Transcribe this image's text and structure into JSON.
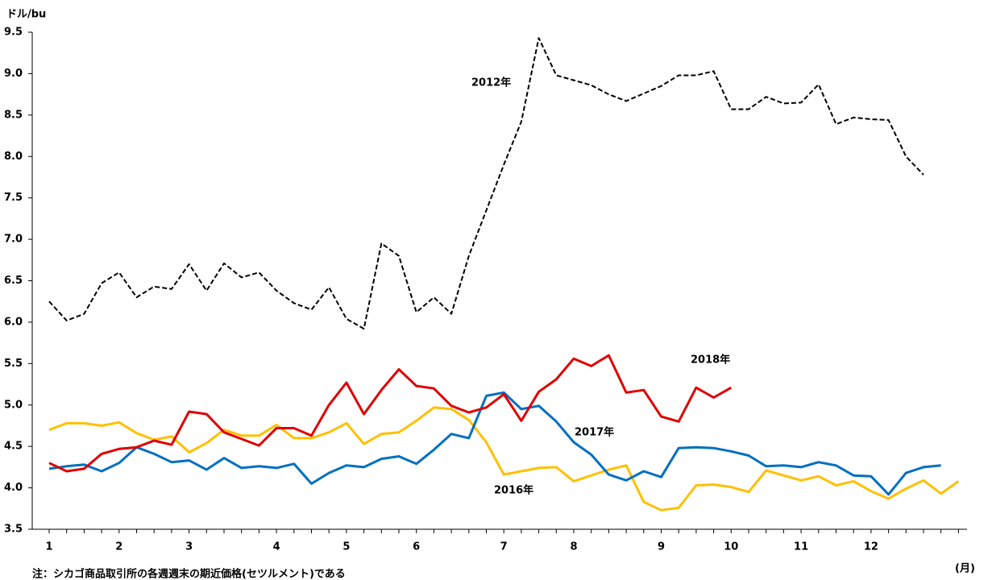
{
  "chart_data": {
    "type": "line",
    "y_label": "ドル/bu",
    "x_label": "(月)",
    "note": "注：シカゴ商品取引所の各週週末の期近価格(セツルメント)である",
    "categories": [
      "1",
      null,
      null,
      null,
      "2",
      null,
      null,
      null,
      "3",
      null,
      null,
      null,
      null,
      "4",
      null,
      null,
      null,
      "5",
      null,
      null,
      null,
      "6",
      null,
      null,
      null,
      null,
      "7",
      null,
      null,
      null,
      "8",
      null,
      null,
      null,
      null,
      "9",
      null,
      null,
      null,
      "10",
      null,
      null,
      null,
      "11",
      null,
      null,
      null,
      "12",
      null,
      null,
      null,
      null,
      null
    ],
    "ylim": [
      3.5,
      9.5
    ],
    "yticks": [
      3.5,
      {
        "value": 4,
        "label": "4.0"
      },
      4.5,
      {
        "value": 5,
        "label": "5.0"
      },
      5.5,
      {
        "value": 6,
        "label": "6.0"
      },
      6.5,
      {
        "value": 7,
        "label": "7.0"
      },
      7.5,
      {
        "value": 8,
        "label": "8.0"
      },
      8.5,
      {
        "value": 9,
        "label": "9.0"
      },
      9.5
    ],
    "grid": false,
    "series": [
      {
        "name": "2012年",
        "color": "#000000",
        "dashed": true,
        "values": [
          6.25,
          6.02,
          6.1,
          6.47,
          6.6,
          6.3,
          6.43,
          6.4,
          6.7,
          6.38,
          6.71,
          6.54,
          6.6,
          6.38,
          6.23,
          6.15,
          6.42,
          6.04,
          5.92,
          6.95,
          6.8,
          6.12,
          6.3,
          6.1,
          6.8,
          7.35,
          7.9,
          8.42,
          9.43,
          8.98,
          8.92,
          8.86,
          8.75,
          8.67,
          8.76,
          8.85,
          8.98,
          8.98,
          9.03,
          8.57,
          8.57,
          8.72,
          8.64,
          8.65,
          8.87,
          8.39,
          8.47,
          8.45,
          8.44,
          8.0,
          7.78,
          null,
          null
        ]
      },
      {
        "name": "2016年",
        "color": "#ffc000",
        "values": [
          4.7,
          4.78,
          4.78,
          4.75,
          4.79,
          4.66,
          4.58,
          4.62,
          4.43,
          4.54,
          4.7,
          4.63,
          4.63,
          4.76,
          4.6,
          4.6,
          4.67,
          4.78,
          4.53,
          4.65,
          4.67,
          4.81,
          4.97,
          4.95,
          4.82,
          4.55,
          4.16,
          4.2,
          4.24,
          4.25,
          4.08,
          4.15,
          4.22,
          4.27,
          3.83,
          3.73,
          3.76,
          4.03,
          4.04,
          4.01,
          3.95,
          4.21,
          4.15,
          4.09,
          4.14,
          4.03,
          4.08,
          3.96,
          3.87,
          3.99,
          4.09,
          3.93,
          4.08
        ]
      },
      {
        "name": "2017年",
        "color": "#0070c0",
        "values": [
          4.23,
          4.26,
          4.28,
          4.2,
          4.3,
          4.49,
          4.41,
          4.31,
          4.33,
          4.22,
          4.36,
          4.24,
          4.26,
          4.24,
          4.29,
          4.05,
          4.18,
          4.27,
          4.25,
          4.35,
          4.38,
          4.29,
          4.46,
          4.65,
          4.6,
          5.11,
          5.15,
          4.95,
          4.99,
          4.8,
          4.55,
          4.4,
          4.16,
          4.09,
          4.2,
          4.13,
          4.48,
          4.49,
          4.48,
          4.44,
          4.39,
          4.26,
          4.27,
          4.25,
          4.31,
          4.27,
          4.15,
          4.14,
          3.92,
          4.18,
          4.25,
          4.27,
          null
        ]
      },
      {
        "name": "2018年",
        "color": "#e00000",
        "values": [
          4.3,
          4.2,
          4.23,
          4.41,
          4.47,
          4.49,
          4.57,
          4.52,
          4.92,
          4.89,
          4.67,
          4.59,
          4.51,
          4.72,
          4.72,
          4.63,
          5.0,
          5.27,
          4.89,
          5.18,
          5.43,
          5.23,
          5.2,
          4.99,
          4.91,
          4.97,
          5.13,
          4.81,
          5.16,
          5.31,
          5.56,
          5.47,
          5.6,
          5.15,
          5.18,
          4.86,
          4.8,
          5.21,
          5.09,
          5.21,
          null,
          null,
          null,
          null,
          null,
          null,
          null,
          null,
          null,
          null,
          null,
          null,
          null
        ]
      }
    ]
  }
}
